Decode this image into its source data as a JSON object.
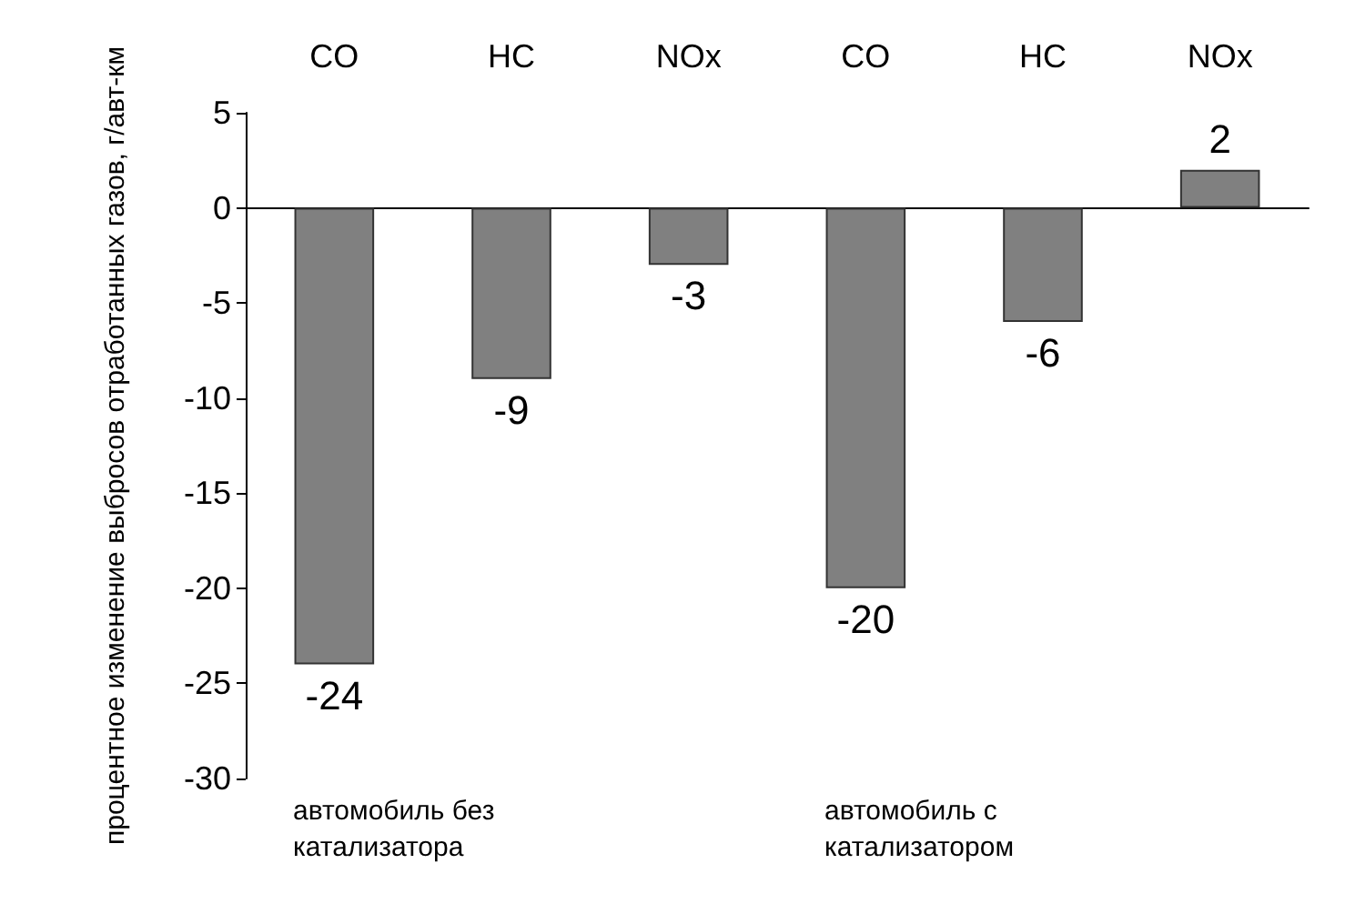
{
  "chart_data": {
    "type": "bar",
    "ylabel": "процентное изменение выбросов отработанных газов, г/авт-км",
    "categories": [
      "CO",
      "HC",
      "NOx",
      "CO",
      "HC",
      "NOx"
    ],
    "values": [
      -24,
      -9,
      -3,
      -20,
      -6,
      2
    ],
    "color": "#808080",
    "data_labels": true,
    "ylim": [
      -30,
      5
    ],
    "yticks": [
      -30,
      -25,
      -20,
      -15,
      -10,
      -5,
      0,
      5
    ],
    "annotations": [
      "автомобиль без катализатора",
      "автомобиль с катализатором"
    ]
  }
}
